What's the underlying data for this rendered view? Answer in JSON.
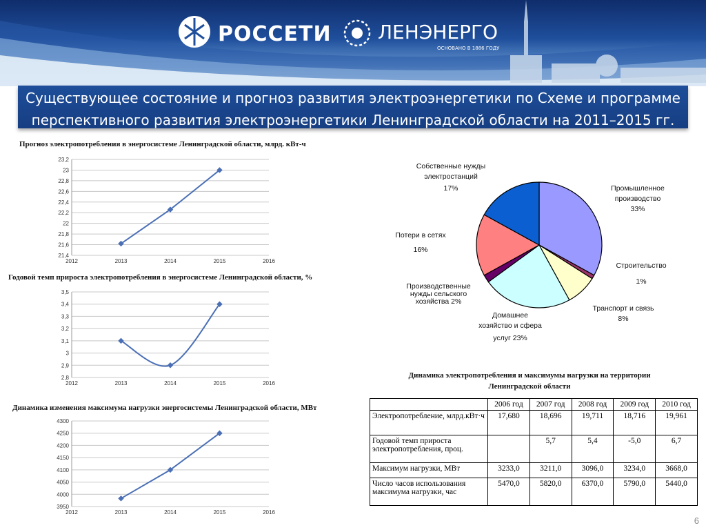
{
  "header": {
    "logo1": "РОССЕТИ",
    "logo2": "ЛЕНЭНЕРГО",
    "logo2_sub": "ОСНОВАНО В 1886 ГОДУ",
    "title_line1": "Существующее состояние и прогноз развития электроэнергетики по Схеме и программе",
    "title_line2": "перспективного развития электроэнергетики Ленинградской области  на 2011–2015 гг."
  },
  "page_number": "6",
  "colors": {
    "line": "#4a6fb5",
    "title_bar": "#1e4e9a"
  },
  "chart_data": [
    {
      "type": "line",
      "title": "Прогноз электропотребления в энергосистеме Ленинградской области, млрд. кВт-ч",
      "x": [
        2013,
        2014,
        2015
      ],
      "values": [
        21.62,
        22.26,
        23.0
      ],
      "xticks": [
        "2012",
        "2013",
        "2014",
        "2015",
        "2016"
      ],
      "yticks": [
        "21,4",
        "21,6",
        "21,8",
        "22",
        "22,2",
        "22,4",
        "22,6",
        "22,8",
        "23",
        "23,2"
      ],
      "xlim": [
        2012,
        2016
      ],
      "ylim": [
        21.4,
        23.2
      ],
      "smooth": false,
      "grid": true
    },
    {
      "type": "line",
      "title": "Годовой темп прироста электропотребления в энергосистеме Ленинградской области, %",
      "x": [
        2013,
        2014,
        2015
      ],
      "values": [
        3.1,
        2.9,
        3.4
      ],
      "xticks": [
        "2012",
        "2013",
        "2014",
        "2015",
        "2016"
      ],
      "yticks": [
        "2,8",
        "2,9",
        "3",
        "3,1",
        "3,2",
        "3,3",
        "3,4",
        "3,5"
      ],
      "xlim": [
        2012,
        2016
      ],
      "ylim": [
        2.8,
        3.5
      ],
      "smooth": true,
      "grid": true
    },
    {
      "type": "line",
      "title": "Динамика изменения максимума нагрузки энергосистемы Ленинградской области, МВт",
      "x": [
        2013,
        2014,
        2015
      ],
      "values": [
        3983,
        4100,
        4250
      ],
      "xticks": [
        "2012",
        "2013",
        "2014",
        "2015",
        "2016"
      ],
      "yticks": [
        "3950",
        "4000",
        "4050",
        "4100",
        "4150",
        "4200",
        "4250",
        "4300"
      ],
      "xlim": [
        2012,
        2016
      ],
      "ylim": [
        3950,
        4300
      ],
      "smooth": false,
      "grid": true
    },
    {
      "type": "pie",
      "slices": [
        {
          "label": "Промышленное производство",
          "value": 33,
          "text": "33%",
          "color": "#9999ff"
        },
        {
          "label": "Строительство",
          "value": 1,
          "text": "1%",
          "color": "#993366"
        },
        {
          "label": "Транспорт и связь",
          "value": 8,
          "text": "8%",
          "color": "#ffffcc"
        },
        {
          "label": "Домашнее хозяйство и сфера услуг",
          "value": 23,
          "text": "23%",
          "color": "#ccffff"
        },
        {
          "label": "Производственные нужды сельского хозяйства",
          "value": 2,
          "text": "2%",
          "color": "#660066"
        },
        {
          "label": "Потери в сетях",
          "value": 16,
          "text": "16%",
          "color": "#ff8080"
        },
        {
          "label": "Собственные нужды электростанций",
          "value": 17,
          "text": "17%",
          "color": "#0b5fd0"
        }
      ]
    },
    {
      "type": "table",
      "title_line1": "Динамика электропотребления и максимумы нагрузки на территории",
      "title_line2": "Ленинградской области",
      "columns": [
        "",
        "2006 год",
        "2007 год",
        "2008 год",
        "2009 год",
        "2010 год"
      ],
      "rows": [
        {
          "label": "Электропотребление, млрд.кВт·ч",
          "values": [
            "17,680",
            "18,696",
            "19,711",
            "18,716",
            "19,961"
          ]
        },
        {
          "label": "Годовой темп прироста электропотребления, проц.",
          "values": [
            "",
            "5,7",
            "5,4",
            "-5,0",
            "6,7"
          ]
        },
        {
          "label": "Максимум нагрузки, МВт",
          "values": [
            "3233,0",
            "3211,0",
            "3096,0",
            "3234,0",
            "3668,0"
          ]
        },
        {
          "label": "Число часов использования максимума нагрузки, час",
          "values": [
            "5470,0",
            "5820,0",
            "6370,0",
            "5790,0",
            "5440,0"
          ]
        }
      ]
    }
  ],
  "pie_labels": {
    "own_needs": {
      "l1": "Собственные нужды",
      "l2": "электростанций",
      "pct": "17%"
    },
    "industry": {
      "l1": "Промышленное",
      "l2": "производство",
      "pct": "33%"
    },
    "losses": {
      "l1": "Потери в сетях",
      "pct": "16%"
    },
    "construction": {
      "l1": "Строительство",
      "pct": "1%"
    },
    "agriculture": {
      "l1": "Производственные",
      "l2": "нужды сельского",
      "l3": "хозяйства 2%"
    },
    "transport": {
      "l1": "Транспорт и связь",
      "pct": "8%"
    },
    "household": {
      "l1": "Домашнее",
      "l2": "хозяйство и сфера",
      "l3": "услуг  23%"
    }
  }
}
